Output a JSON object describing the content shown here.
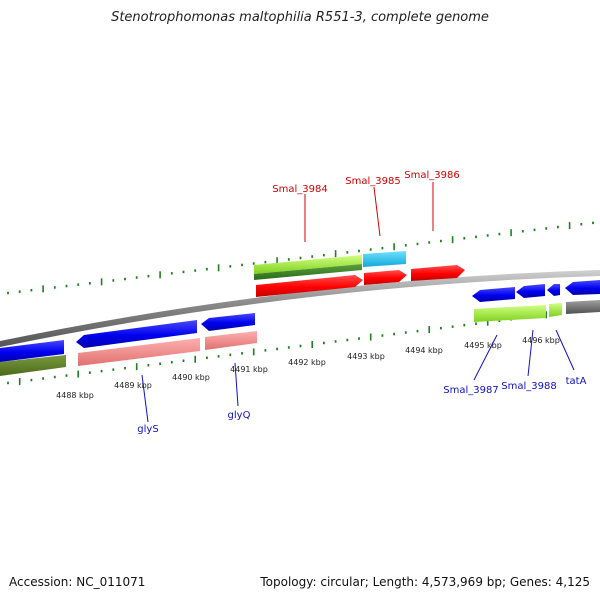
{
  "title": "Stenotrophomonas maltophilia R551-3, complete genome",
  "footer": {
    "accession": "Accession: NC_011071",
    "summary": "Topology: circular; Length: 4,573,969 bp; Genes: 4,125"
  },
  "ruler": [
    "4488 kbp",
    "4489 kbp",
    "4490 kbp",
    "4491 kbp",
    "4492 kbp",
    "4493 kbp",
    "4494 kbp",
    "4495 kbp",
    "4496 kbp"
  ],
  "top_labels": [
    "Smal_3984",
    "Smal_3985",
    "Smal_3986"
  ],
  "bottom_labels": [
    "glyS",
    "glyQ",
    "Smal_3987",
    "Smal_3988",
    "tatA"
  ],
  "colors": {
    "backbone": "#808080",
    "forward_gene": "#ff0000",
    "reverse_gene": "#0000ee",
    "cyan_gene": "#1ec8ee",
    "lime_feature": "#a6f03c",
    "dark_green_feature": "#3a8a2a",
    "olive_feature": "#5a7a2a",
    "pink_feature": "#f08c8c",
    "gray_feature": "#707070",
    "tick_green": "#208020",
    "top_label_color": "#d00000",
    "bottom_label_color": "#1010c8"
  }
}
